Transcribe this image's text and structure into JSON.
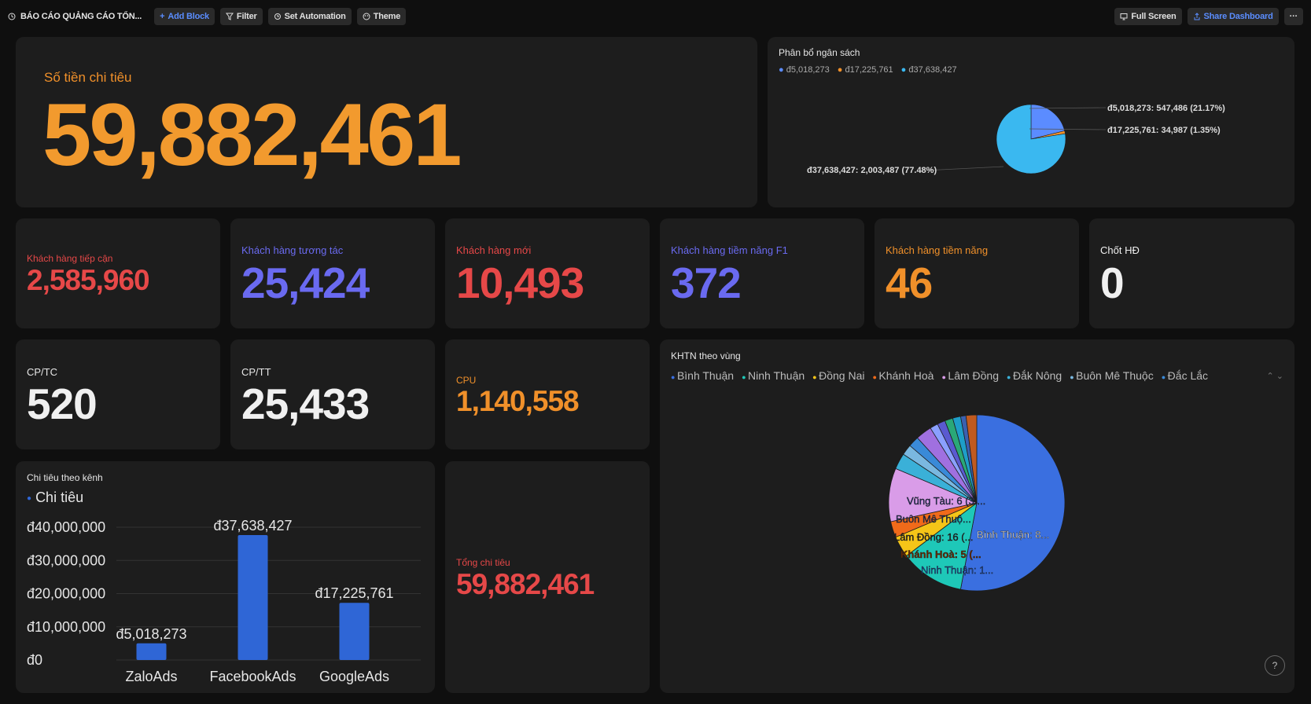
{
  "topbar": {
    "title": "BÁO CÁO QUẢNG CÁO TỔN...",
    "add_block": "Add Block",
    "filter": "Filter",
    "set_automation": "Set Automation",
    "theme": "Theme",
    "full_screen": "Full Screen",
    "share_dashboard": "Share Dashboard",
    "more": "···"
  },
  "spend_card": {
    "label": "Số tiền chi tiêu",
    "value": "59,882,461"
  },
  "budget_pie": {
    "title": "Phân bổ ngân sách",
    "legend": [
      "đ5,018,273",
      "đ17,225,761",
      "đ37,638,427"
    ],
    "colors": [
      "#5b8cff",
      "#f0902a",
      "#3ab8f0"
    ],
    "labels": [
      "đ5,018,273: 547,486 (21.17%)",
      "đ17,225,761: 34,987 (1.35%)",
      "đ37,638,427: 2,003,487 (77.48%)"
    ]
  },
  "kpis": [
    {
      "label": "Khách hàng tiếp cận",
      "value": "2,585,960",
      "color": "#e64848"
    },
    {
      "label": "Khách hàng tương tác",
      "value": "25,424",
      "color": "#6a6af0"
    },
    {
      "label": "Khách hàng mới",
      "value": "10,493",
      "color": "#e64848"
    },
    {
      "label": "Khách hàng tiềm năng F1",
      "value": "372",
      "color": "#6a6af0"
    },
    {
      "label": "Khách hàng tiềm năng",
      "value": "46",
      "color": "#f0902a"
    },
    {
      "label": "Chốt HĐ",
      "value": "0",
      "color": "#f0f0f0"
    }
  ],
  "cost_cards": [
    {
      "label": "CP/TC",
      "value": "520",
      "color": "#f0f0f0"
    },
    {
      "label": "CP/TT",
      "value": "25,433",
      "color": "#f0f0f0"
    },
    {
      "label": "CPU",
      "value": "1,140,558",
      "color": "#f0902a"
    }
  ],
  "total_card": {
    "label": "Tổng chi tiêu",
    "value": "59,882,461",
    "color": "#e64848"
  },
  "region_pie": {
    "title": "KHTN theo vùng",
    "legend": [
      {
        "name": "Bình Thuận",
        "color": "#3a6fe0"
      },
      {
        "name": "Ninh Thuận",
        "color": "#1ec8b8"
      },
      {
        "name": "Đồng Nai",
        "color": "#f5c518"
      },
      {
        "name": "Khánh Hoà",
        "color": "#f06a1a"
      },
      {
        "name": "Lâm Đồng",
        "color": "#d99ce8"
      },
      {
        "name": "Đắk Nông",
        "color": "#3ab0d8"
      },
      {
        "name": "Buôn Mê Thuộc",
        "color": "#7ab8e0"
      },
      {
        "name": "Đắc Lắc",
        "color": "#3a8ad8"
      }
    ],
    "slice_labels": {
      "binh_thuan": "Bình Thuận: 8...",
      "ninh_thuan": "Ninh Thuận: 1...",
      "khanh_hoa": "Khánh Hoà: 5 (...",
      "lam_dong": "Lâm Đồng: 16 (...",
      "buon_me": "Buôn Mê Thuộ...",
      "vung_tau": "Vũng Tàu: 6 (3...."
    },
    "help": "?"
  },
  "chart_data": {
    "type": "bar",
    "title": "Chi tiêu theo kênh",
    "legend": "Chi tiêu",
    "series_color": "#2f66d6",
    "categories": [
      "ZaloAds",
      "FacebookAds",
      "GoogleAds"
    ],
    "values": [
      5018273,
      37638427,
      17225761
    ],
    "value_labels": [
      "đ5,018,273",
      "đ37,638,427",
      "đ17,225,761"
    ],
    "yticks": [
      "đ0",
      "đ10,000,000",
      "đ20,000,000",
      "đ30,000,000",
      "đ40,000,000"
    ],
    "ylim": [
      0,
      40000000
    ]
  }
}
